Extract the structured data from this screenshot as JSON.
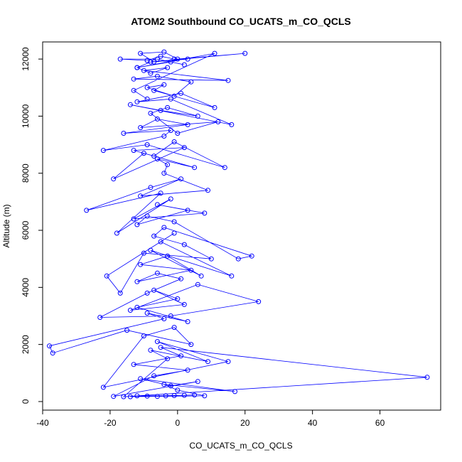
{
  "chart_data": {
    "type": "scatter",
    "title": "ATOM2 Southbound CO_UCATS_m_CO_QCLS",
    "xlabel": "CO_UCATS_m_CO_QCLS",
    "ylabel": "Altitude (m)",
    "xlim": [
      -40,
      78
    ],
    "ylim": [
      -300,
      12600
    ],
    "x_ticks": [
      -40,
      -20,
      0,
      20,
      40,
      60
    ],
    "x_tick_labels": [
      "-40",
      "-20",
      "0",
      "20",
      "40",
      "60"
    ],
    "y_ticks": [
      0,
      2000,
      4000,
      6000,
      8000,
      10000,
      12000
    ],
    "y_tick_labels": [
      "0",
      "2000",
      "4000",
      "6000",
      "8000",
      "10000",
      "12000"
    ],
    "grid": false,
    "connected": true,
    "marker": "open-circle",
    "series": [
      {
        "name": "CO_UCATS_m_CO_QCLS",
        "color": "#0000ff",
        "x": [
          -3.5,
          -12,
          -6,
          2,
          -9,
          -1,
          5,
          -14,
          8,
          0,
          -4,
          17,
          -11,
          -2,
          6,
          -19,
          -7,
          3,
          -13,
          1,
          -5,
          74,
          -16,
          -3,
          -8,
          9,
          -6,
          15,
          -22,
          -10,
          -1,
          4,
          -15,
          -37,
          -38,
          -4,
          -9,
          3,
          -12,
          0,
          -7,
          2,
          -14,
          6,
          24,
          -2,
          -23,
          -9,
          1,
          -6,
          -12,
          4,
          -11,
          -3,
          7,
          -8,
          16,
          -5,
          -1,
          -21,
          -17,
          -10,
          10,
          2,
          -7,
          -4,
          22,
          18,
          -1,
          -9,
          -12,
          3,
          -6,
          8,
          -13,
          -2,
          -18,
          -5,
          -27,
          -8,
          1,
          -11,
          9,
          -4,
          -3,
          -6,
          5,
          -10,
          -19,
          2,
          -13,
          -7,
          -1,
          14,
          -9,
          -22,
          -4,
          -2,
          -16,
          3,
          -6,
          -11,
          12,
          0,
          -8,
          -3,
          6,
          -5,
          -14,
          16,
          -2,
          -12,
          1,
          11,
          -7,
          -4,
          -9,
          -1,
          4,
          -6,
          -13,
          15,
          -10,
          -3,
          -8,
          -12,
          -2,
          2,
          -6,
          -17,
          -9,
          -5,
          -1,
          3,
          -7,
          -11,
          -4,
          0,
          20,
          -8,
          -12,
          11,
          -13,
          -9
        ],
        "y": [
          200,
          200,
          180,
          220,
          190,
          210,
          230,
          170,
          200,
          400,
          600,
          350,
          800,
          550,
          700,
          180,
          900,
          1100,
          1300,
          1600,
          1900,
          850,
          170,
          1500,
          1800,
          1400,
          2100,
          1400,
          500,
          2300,
          2600,
          2000,
          2500,
          1700,
          1950,
          2900,
          3100,
          2800,
          3300,
          3600,
          3900,
          3400,
          3200,
          4100,
          3500,
          3000,
          2950,
          3800,
          4300,
          4500,
          4200,
          4600,
          4800,
          5100,
          4400,
          5300,
          4400,
          5600,
          5900,
          4400,
          3800,
          5200,
          5000,
          5500,
          5800,
          6100,
          5100,
          5000,
          6300,
          6500,
          6200,
          6700,
          6900,
          6600,
          6400,
          7100,
          5900,
          7300,
          6700,
          7500,
          7800,
          7200,
          7400,
          8000,
          8300,
          8500,
          8200,
          8700,
          7800,
          8900,
          8800,
          8600,
          9100,
          8200,
          9000,
          8800,
          9300,
          9500,
          9400,
          9700,
          9900,
          9600,
          9800,
          9400,
          10100,
          10300,
          10000,
          10200,
          10400,
          9700,
          10600,
          10500,
          10800,
          10300,
          10900,
          11100,
          11000,
          10700,
          11200,
          11400,
          11300,
          11250,
          11600,
          11700,
          11500,
          11700,
          11900,
          11800,
          12000,
          12000,
          11950,
          12100,
          12000,
          12000,
          11900,
          12200,
          12250,
          12000,
          12200,
          11900,
          11700,
          12200,
          10900,
          10600
        ]
      }
    ]
  }
}
